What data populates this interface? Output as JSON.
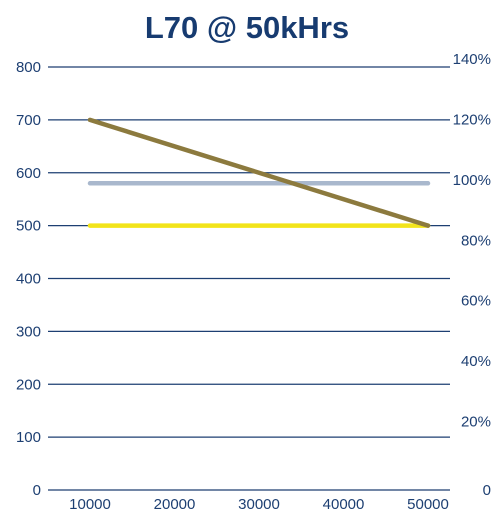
{
  "chart_data": {
    "type": "line",
    "title": "L70 @ 50kHrs",
    "xlabel": "",
    "ylabel": "",
    "x": [
      10000,
      20000,
      30000,
      40000,
      50000
    ],
    "x_ticks": [
      "10000",
      "20000",
      "30000",
      "40000",
      "50000"
    ],
    "xlim": [
      10000,
      50000
    ],
    "ylim": [
      0,
      800
    ],
    "y_ticks": [
      "0",
      "100",
      "200",
      "300",
      "400",
      "500",
      "600",
      "700",
      "800"
    ],
    "y2_ticks": [
      "0",
      "20%",
      "40%",
      "60%",
      "80%",
      "100%",
      "120%",
      "140%"
    ],
    "y2lim": [
      0,
      140
    ],
    "grid": true,
    "series": [
      {
        "color": "#8c7a3e",
        "x": [
          10000,
          50000
        ],
        "values": [
          700,
          500
        ]
      },
      {
        "color": "#a9b8cd",
        "x": [
          10000,
          50000
        ],
        "values": [
          580,
          580
        ]
      },
      {
        "color": "#f2e41a",
        "x": [
          10000,
          50000
        ],
        "values": [
          500,
          500
        ]
      }
    ],
    "colors": {
      "title": "#173b70",
      "grid": "#1d3f72",
      "tick_text": "#1d3f72"
    }
  }
}
